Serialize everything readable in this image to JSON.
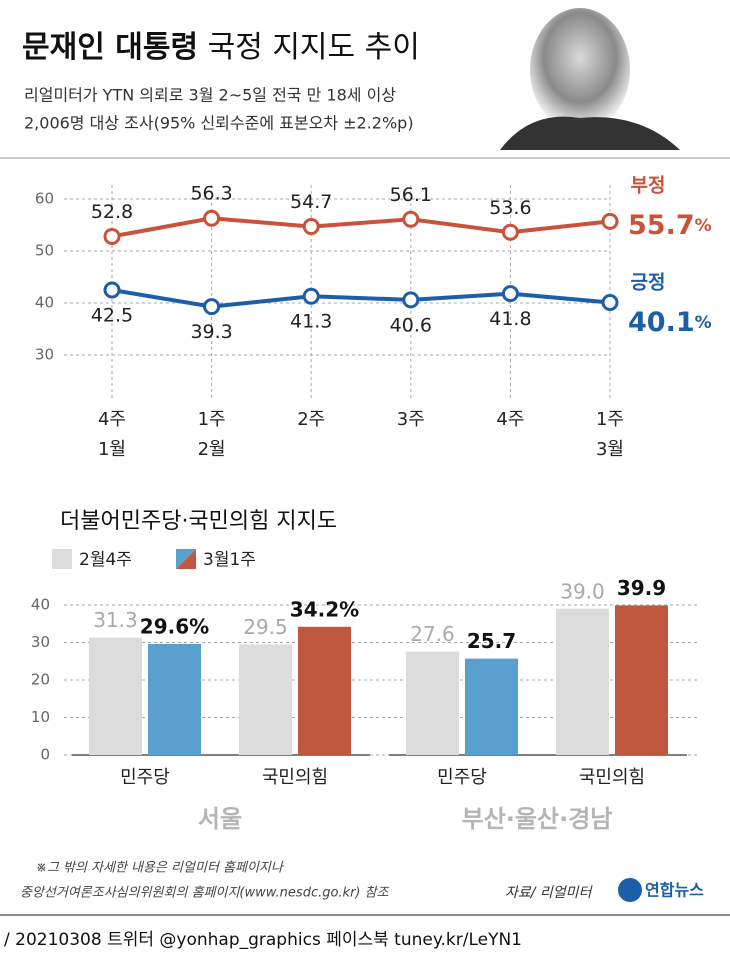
{
  "header": {
    "title_bold": "문재인 대통령",
    "title_rest": "국정 지지도 추이",
    "subtitle": [
      "리얼미터가 YTN 의뢰로 3월 2~5일 전국 만 18세 이상",
      "2,006명 대상 조사(95% 신뢰수준에 표본오차 ±2.2%p)"
    ]
  },
  "chart_data": [
    {
      "type": "line",
      "categories": [
        [
          "4주",
          "1월"
        ],
        [
          "1주",
          "2월"
        ],
        [
          "2주"
        ],
        [
          "3주"
        ],
        [
          "4주"
        ],
        [
          "1주",
          "3월"
        ]
      ],
      "series": [
        {
          "name": "부정",
          "color": "#c8523a",
          "values": [
            52.8,
            56.3,
            54.7,
            56.1,
            53.6,
            55.7
          ],
          "value_labels": [
            "52.8",
            "56.3",
            "54.7",
            "56.1",
            "53.6",
            "55.7%"
          ]
        },
        {
          "name": "긍정",
          "color": "#1d5ea8",
          "values": [
            42.5,
            39.3,
            41.3,
            40.6,
            41.8,
            40.1
          ],
          "value_labels": [
            "42.5",
            "39.3",
            "41.3",
            "40.6",
            "41.8",
            "40.1%"
          ]
        }
      ],
      "ylim": [
        30,
        60
      ],
      "yticks": [
        30,
        40,
        50,
        60
      ],
      "grid": true
    },
    {
      "type": "bar",
      "title": "더불어민주당·국민의힘 지지도",
      "series": [
        {
          "name": "2월4주",
          "color": "#dcdcdc"
        },
        {
          "name": "3월1주",
          "colors": [
            "#5aa0cf",
            "#c0583f"
          ]
        }
      ],
      "ylim": [
        0,
        40
      ],
      "yticks": [
        0,
        10,
        20,
        30,
        40
      ],
      "grid": true,
      "panels": [
        {
          "label": "서울",
          "categories": [
            "민주당",
            "국민의힘"
          ],
          "values": [
            [
              31.3,
              29.5
            ],
            [
              29.6,
              34.2
            ]
          ],
          "value_labels": [
            [
              "31.3",
              "29.5"
            ],
            [
              "29.6%",
              "34.2%"
            ]
          ]
        },
        {
          "label": "부산·울산·경남",
          "categories": [
            "민주당",
            "국민의힘"
          ],
          "values": [
            [
              27.6,
              39.0
            ],
            [
              25.7,
              39.9
            ]
          ],
          "value_labels": [
            [
              "27.6",
              "39.0"
            ],
            [
              "25.7",
              "39.9"
            ]
          ]
        }
      ]
    }
  ],
  "footer": {
    "notes": [
      "※그 밖의 자세한 내용은 리얼미터 홈페이지나",
      "중앙선거여론조사심의위원회의 홈페이지(www.nesdc.go.kr) 참조"
    ],
    "source": "자료/ 리얼미터",
    "logo": "연합뉴스",
    "credit": "/ 20210308  트위터 @yonhap_graphics  페이스북 tuney.kr/LeYN1"
  }
}
